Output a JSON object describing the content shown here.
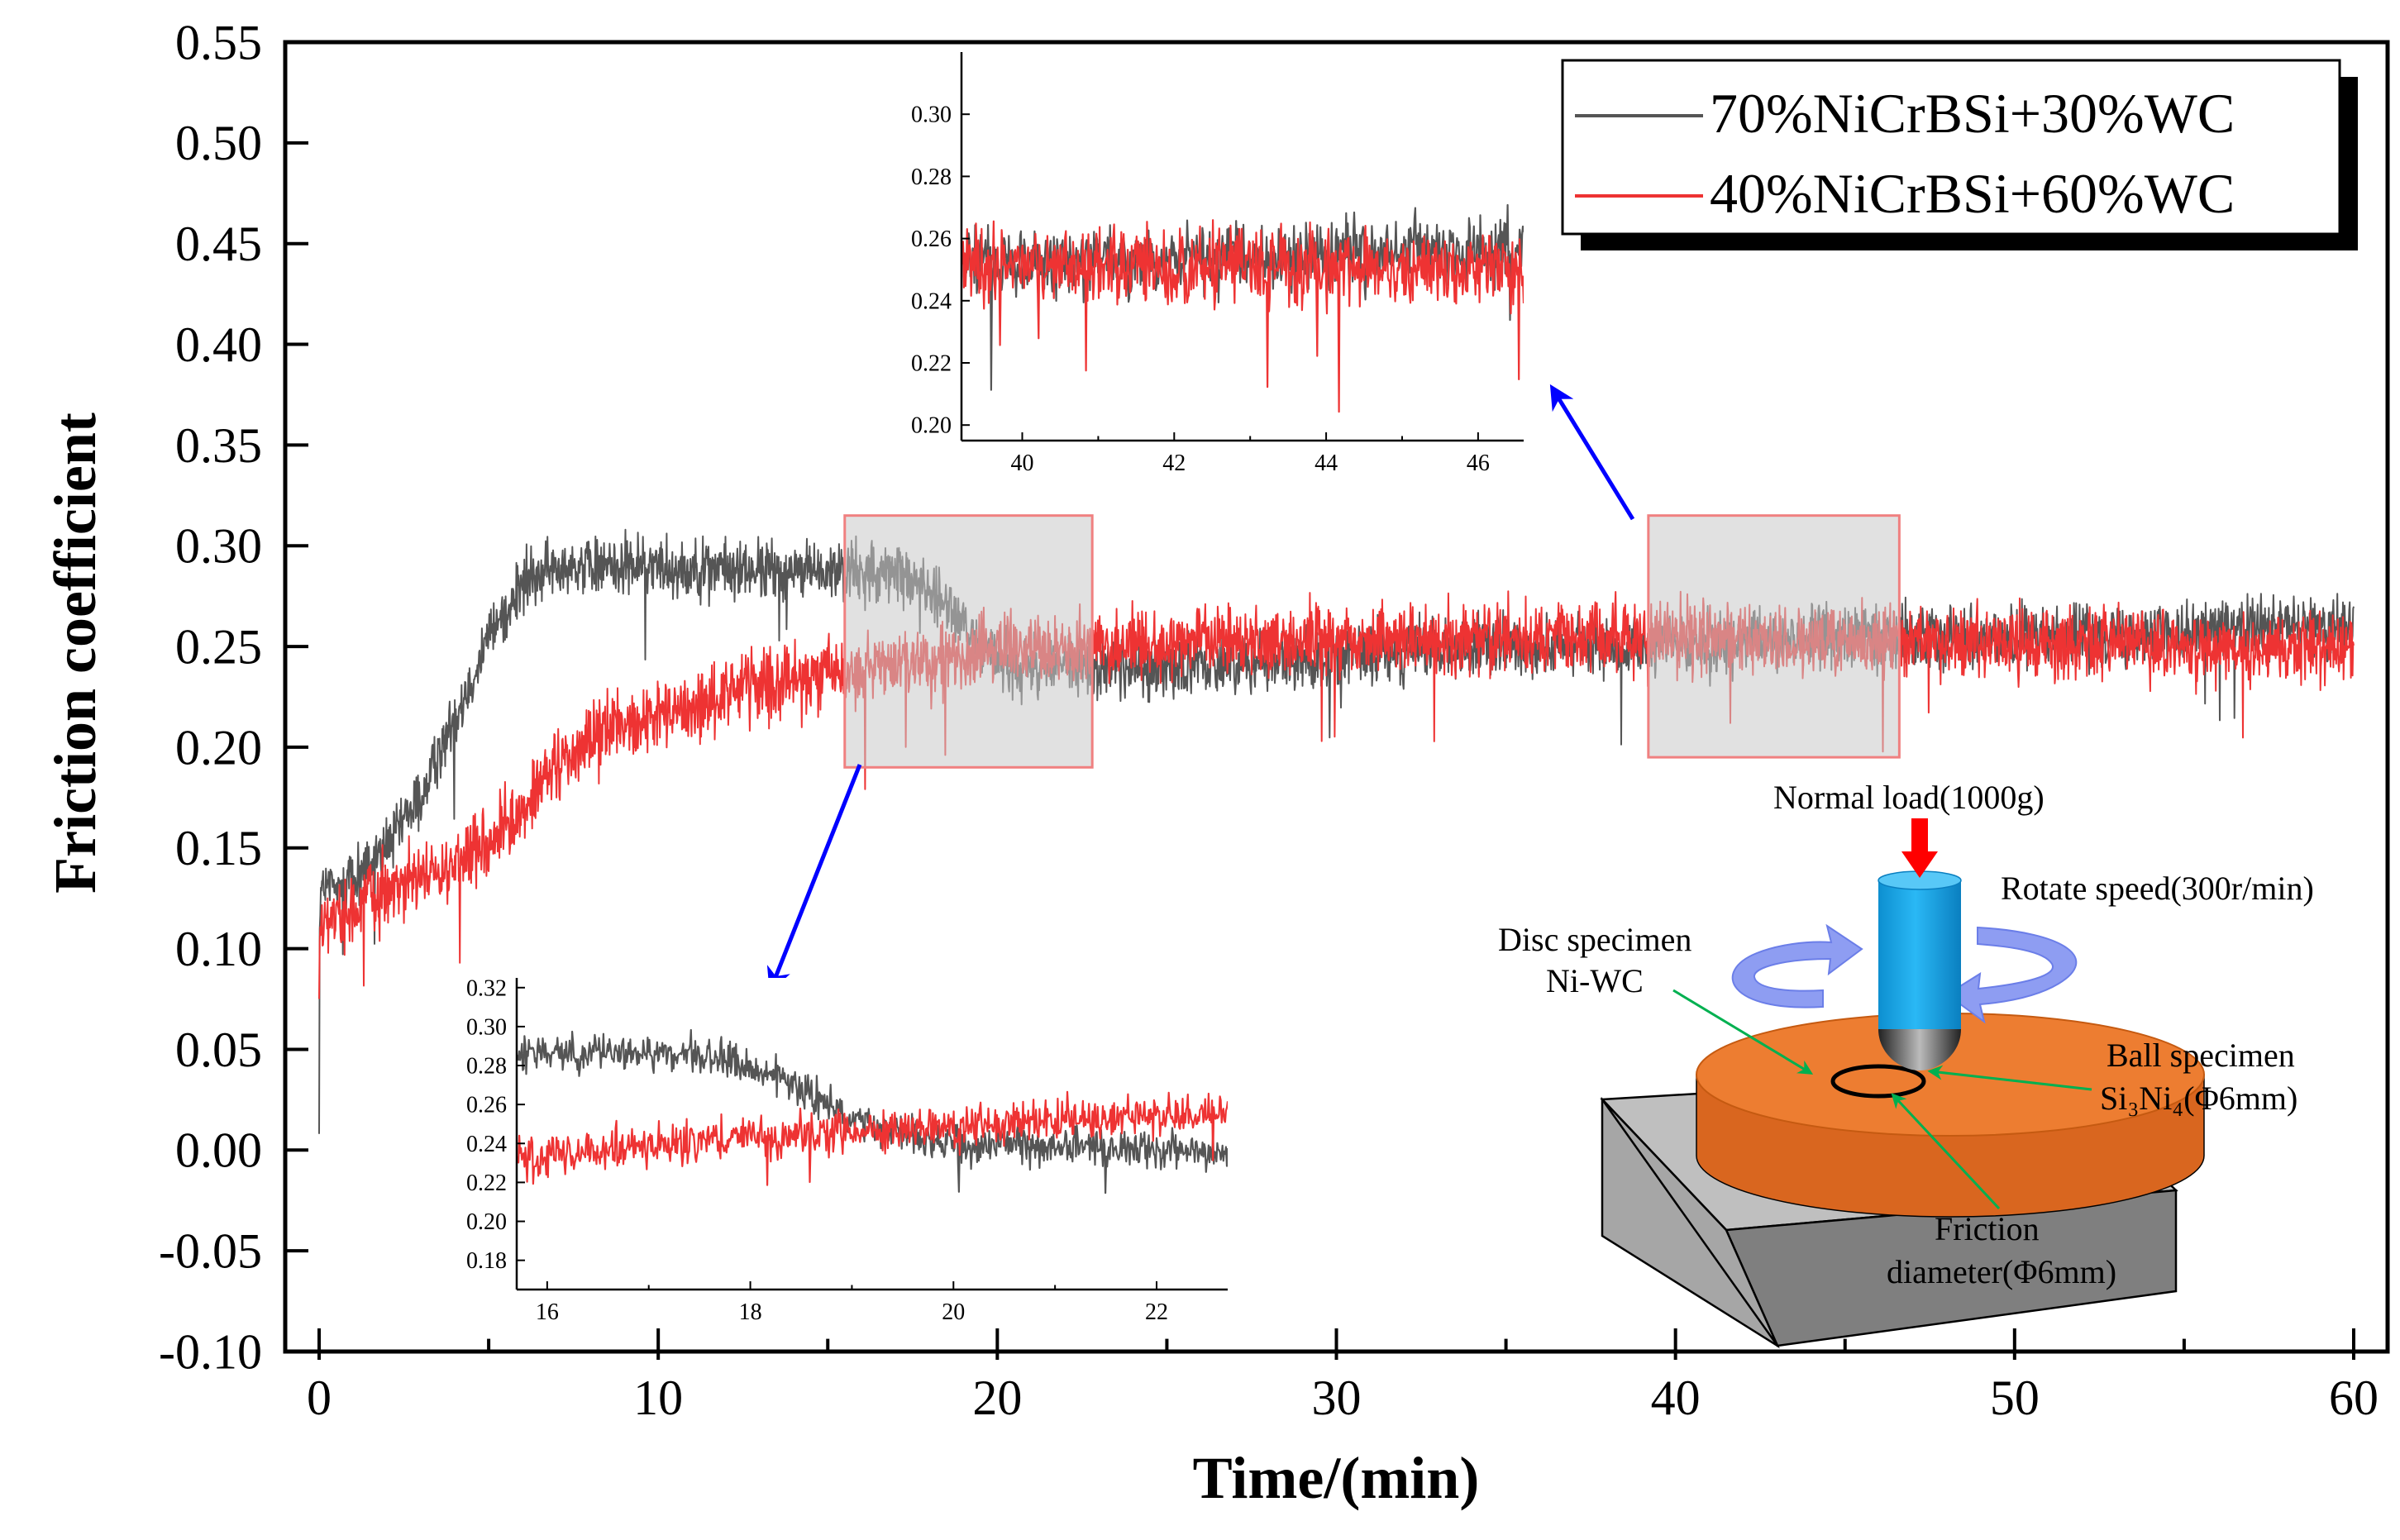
{
  "chart_data": [
    {
      "id": "main",
      "type": "line",
      "xlabel": "Time/(min)",
      "ylabel": "Friction coefficient",
      "xlim": [
        -1,
        61
      ],
      "ylim": [
        -0.1,
        0.55
      ],
      "xticks": [
        0,
        10,
        20,
        30,
        40,
        50,
        60
      ],
      "xtick_labels": [
        "0",
        "10",
        "20",
        "30",
        "40",
        "50",
        "60"
      ],
      "yticks": [
        -0.1,
        -0.05,
        0.0,
        0.05,
        0.1,
        0.15,
        0.2,
        0.25,
        0.3,
        0.35,
        0.4,
        0.45,
        0.5,
        0.55
      ],
      "ytick_labels": [
        "-0.10",
        "-0.05",
        "0.00",
        "0.05",
        "0.10",
        "0.15",
        "0.20",
        "0.25",
        "0.30",
        "0.35",
        "0.40",
        "0.45",
        "0.50",
        "0.55"
      ],
      "grid": false,
      "legend_position": "top-right",
      "series": [
        {
          "name": "70%NiCrBSi+30%WC",
          "color": "#555555",
          "noise": 0.022,
          "points": [
            [
              0,
              0.008
            ],
            [
              0.02,
              0.13
            ],
            [
              0.5,
              0.13
            ],
            [
              1,
              0.135
            ],
            [
              2,
              0.15
            ],
            [
              3,
              0.175
            ],
            [
              4,
              0.215
            ],
            [
              5,
              0.255
            ],
            [
              6,
              0.28
            ],
            [
              7,
              0.29
            ],
            [
              8,
              0.29
            ],
            [
              10,
              0.29
            ],
            [
              12,
              0.288
            ],
            [
              14,
              0.287
            ],
            [
              16,
              0.287
            ],
            [
              17.5,
              0.285
            ],
            [
              18.5,
              0.27
            ],
            [
              19.5,
              0.25
            ],
            [
              20.5,
              0.24
            ],
            [
              25,
              0.24
            ],
            [
              30,
              0.245
            ],
            [
              35,
              0.25
            ],
            [
              40,
              0.25
            ],
            [
              45,
              0.255
            ],
            [
              50,
              0.255
            ],
            [
              55,
              0.258
            ],
            [
              60,
              0.26
            ]
          ]
        },
        {
          "name": "40%NiCrBSi+60%WC",
          "color": "#ee3333",
          "noise": 0.026,
          "points": [
            [
              0,
              0.075
            ],
            [
              0.02,
              0.11
            ],
            [
              0.5,
              0.115
            ],
            [
              2,
              0.13
            ],
            [
              4,
              0.14
            ],
            [
              5,
              0.15
            ],
            [
              6,
              0.17
            ],
            [
              7,
              0.19
            ],
            [
              8,
              0.205
            ],
            [
              10,
              0.215
            ],
            [
              12,
              0.225
            ],
            [
              14,
              0.235
            ],
            [
              16,
              0.238
            ],
            [
              18,
              0.243
            ],
            [
              20,
              0.248
            ],
            [
              25,
              0.252
            ],
            [
              30,
              0.253
            ],
            [
              35,
              0.254
            ],
            [
              40,
              0.255
            ],
            [
              45,
              0.253
            ],
            [
              50,
              0.252
            ],
            [
              55,
              0.25
            ],
            [
              60,
              0.248
            ]
          ]
        }
      ],
      "zoom_boxes": [
        {
          "x": [
            15.5,
            22.8
          ],
          "y": [
            0.19,
            0.315
          ]
        },
        {
          "x": [
            39.2,
            46.6
          ],
          "y": [
            0.195,
            0.315
          ]
        }
      ]
    },
    {
      "id": "inset-top",
      "type": "line",
      "xlim": [
        39.2,
        46.6
      ],
      "ylim": [
        0.195,
        0.32
      ],
      "xticks": [
        40,
        42,
        44,
        46
      ],
      "xtick_labels": [
        "40",
        "42",
        "44",
        "46"
      ],
      "yticks": [
        0.2,
        0.22,
        0.24,
        0.26,
        0.28,
        0.3
      ],
      "ytick_labels": [
        "0.20",
        "0.22",
        "0.24",
        "0.26",
        "0.28",
        "0.30"
      ],
      "series": [
        {
          "name": "70%NiCrBSi+30%WC",
          "color": "#555555",
          "noise": 0.016,
          "points": [
            [
              39.2,
              0.252
            ],
            [
              46.6,
              0.256
            ]
          ]
        },
        {
          "name": "40%NiCrBSi+60%WC",
          "color": "#ee3333",
          "noise": 0.018,
          "points": [
            [
              39.2,
              0.252
            ],
            [
              46.6,
              0.25
            ]
          ]
        }
      ]
    },
    {
      "id": "inset-bottom",
      "type": "line",
      "xlim": [
        15.7,
        22.7
      ],
      "ylim": [
        0.165,
        0.325
      ],
      "xticks": [
        16,
        18,
        20,
        22
      ],
      "xtick_labels": [
        "16",
        "18",
        "20",
        "22"
      ],
      "yticks": [
        0.18,
        0.2,
        0.22,
        0.24,
        0.26,
        0.28,
        0.3,
        0.32
      ],
      "ytick_labels": [
        "0.18",
        "0.20",
        "0.22",
        "0.24",
        "0.26",
        "0.28",
        "0.30",
        "0.32"
      ],
      "series": [
        {
          "name": "70%NiCrBSi+30%WC",
          "color": "#555555",
          "noise": 0.014,
          "points": [
            [
              15.7,
              0.285
            ],
            [
              17.5,
              0.287
            ],
            [
              18.3,
              0.275
            ],
            [
              19,
              0.252
            ],
            [
              20,
              0.24
            ],
            [
              21,
              0.238
            ],
            [
              22.7,
              0.235
            ]
          ]
        },
        {
          "name": "40%NiCrBSi+60%WC",
          "color": "#ee3333",
          "noise": 0.016,
          "points": [
            [
              15.7,
              0.233
            ],
            [
              17,
              0.238
            ],
            [
              18,
              0.243
            ],
            [
              19,
              0.246
            ],
            [
              20,
              0.248
            ],
            [
              21,
              0.252
            ],
            [
              22.7,
              0.256
            ]
          ]
        }
      ]
    }
  ],
  "schematic": {
    "normal_load": "Normal load(1000g)",
    "rotate_speed": "Rotate speed(300r/min)",
    "disc_label_1": "Disc specimen",
    "disc_label_2": "Ni-WC",
    "ball_label_1": "Ball specimen",
    "ball_label_2": "Si₃Ni₄(Φ6mm)",
    "friction_label_1": "Friction",
    "friction_label_2": "diameter(Φ6mm)",
    "colors": {
      "disc": "#ed7d31",
      "base": "#bfbfbf",
      "pin": "#1aa7e8",
      "load_arrow": "#ff0000",
      "rotation": "#8e9df2",
      "pointer": "#00b050",
      "zoom_arrow": "#0000ff",
      "zoom_box": "#f08080"
    }
  }
}
